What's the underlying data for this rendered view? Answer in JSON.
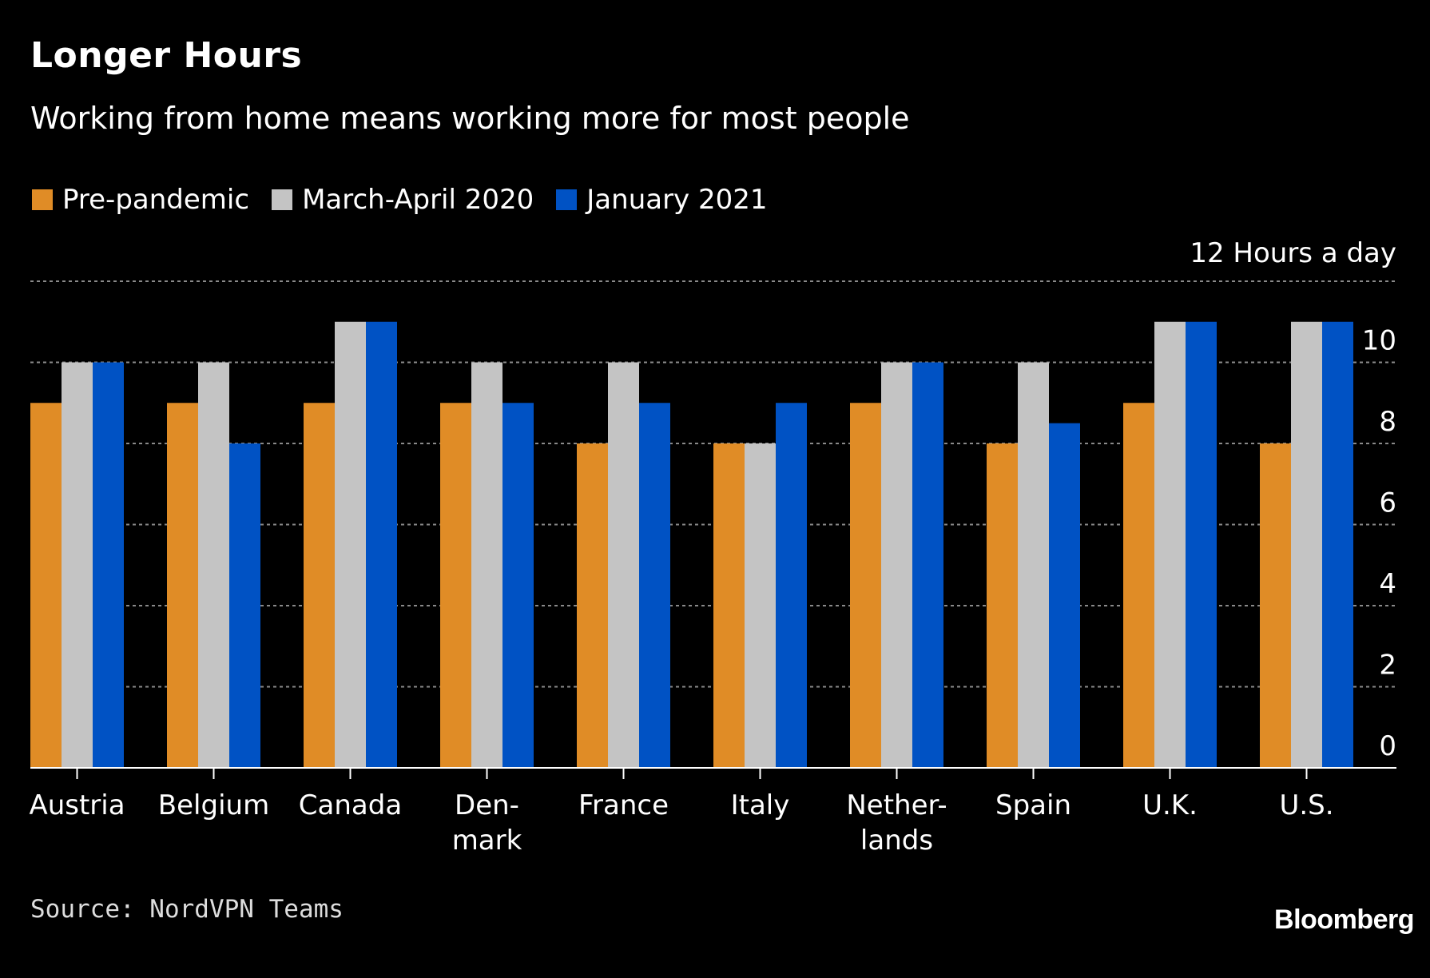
{
  "header": {
    "title": "Longer Hours",
    "subtitle": "Working from home means working more for most people"
  },
  "footer": {
    "source": "Source: NordVPN Teams",
    "logo": "Bloomberg"
  },
  "chart_data": {
    "type": "bar",
    "title": "Longer Hours",
    "subtitle": "Working from home means working more for most people",
    "ylabel": "Hours a day",
    "y_top_label": "12 Hours a day",
    "ylim": [
      0,
      12
    ],
    "yticks": [
      0,
      2,
      4,
      6,
      8,
      10
    ],
    "grid": true,
    "legend_position": "top-left",
    "categories": [
      [
        "Austria"
      ],
      [
        "Belgium"
      ],
      [
        "Canada"
      ],
      [
        "Den-",
        "mark"
      ],
      [
        "France"
      ],
      [
        "Italy"
      ],
      [
        "Nether-",
        "lands"
      ],
      [
        "Spain"
      ],
      [
        "U.K."
      ],
      [
        "U.S."
      ]
    ],
    "series": [
      {
        "name": "Pre-pandemic",
        "color": "#e08c26",
        "values": [
          9,
          9,
          9,
          9,
          8,
          8,
          9,
          8,
          9,
          8
        ]
      },
      {
        "name": "March-April 2020",
        "color": "#c4c4c4",
        "values": [
          10,
          10,
          11,
          10,
          10,
          8,
          10,
          10,
          11,
          11
        ]
      },
      {
        "name": "January 2021",
        "color": "#0052c4",
        "values": [
          10,
          8,
          11,
          9,
          9,
          9,
          10,
          8.5,
          11,
          11
        ]
      }
    ]
  }
}
